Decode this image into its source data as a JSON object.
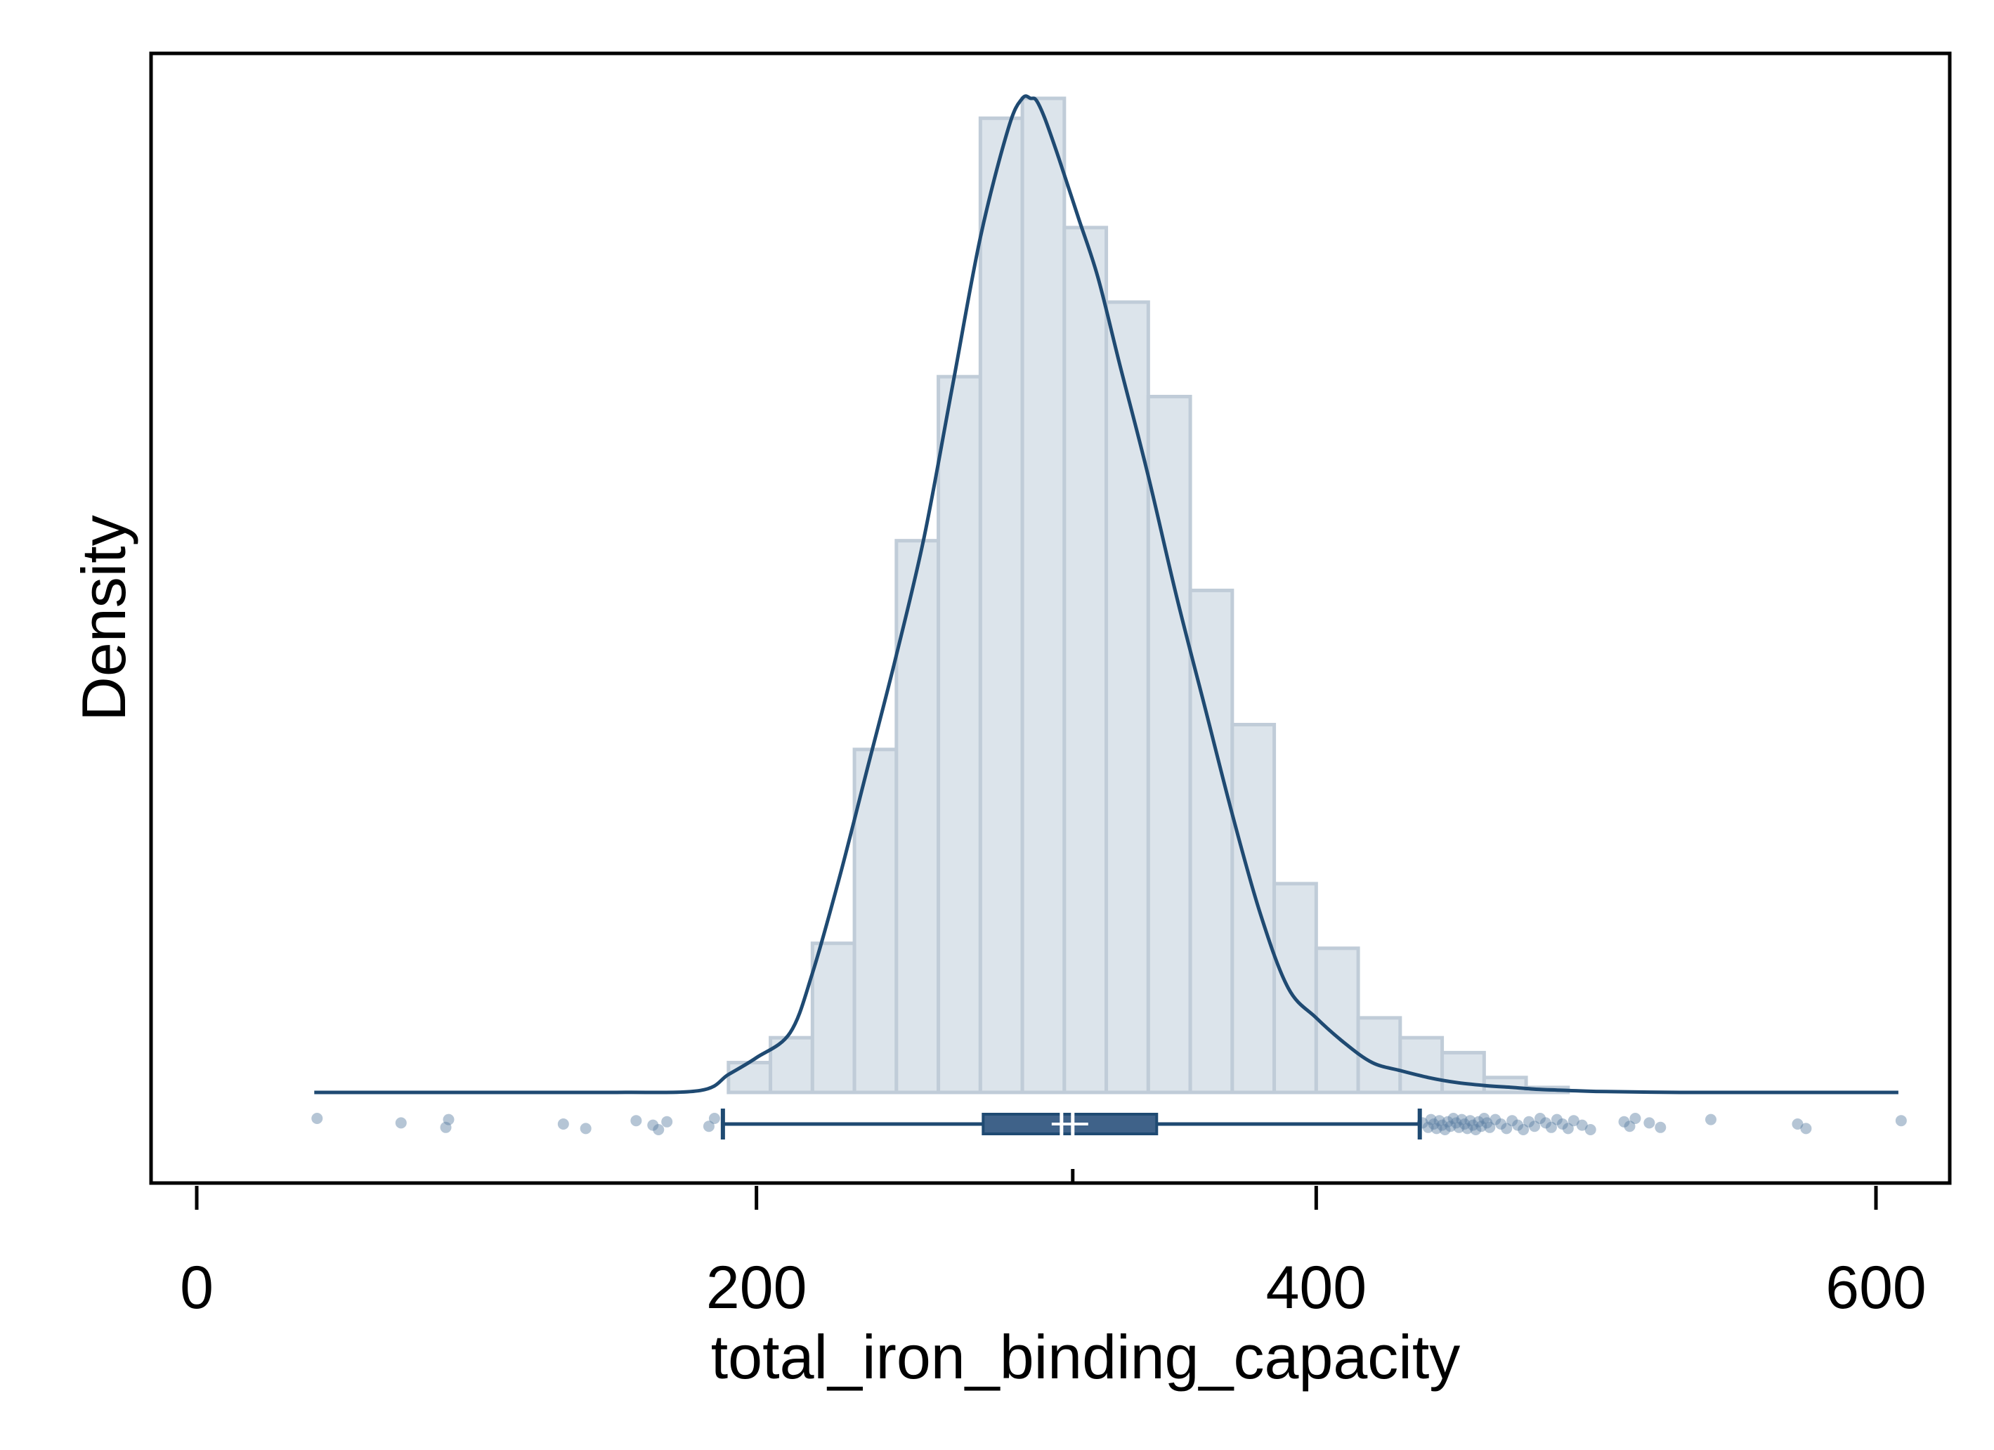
{
  "chart_data": {
    "type": "histogram",
    "xlabel": "total_iron_binding_capacity",
    "ylabel": "Density",
    "xlim": [
      -15,
      625
    ],
    "x_ticks": [
      0,
      200,
      400,
      600
    ],
    "y_ticks_shown": false,
    "grid": false,
    "legend": "none",
    "colors": {
      "bar_fill": "#dce4eb",
      "bar_edge": "#c0ccd8",
      "line": "#1f4a72",
      "box_fill": "#3f6289",
      "points": "#5a7ea1",
      "frame": "#000000"
    },
    "histogram": {
      "bin_edges": [
        190,
        205,
        220,
        235,
        250,
        265,
        280,
        295,
        310,
        325,
        340,
        355,
        370,
        385,
        400,
        415,
        430,
        445,
        460,
        475,
        490
      ],
      "relative_heights": [
        0.03,
        0.055,
        0.15,
        0.345,
        0.555,
        0.72,
        0.98,
        1.0,
        0.87,
        0.795,
        0.7,
        0.505,
        0.37,
        0.21,
        0.145,
        0.075,
        0.055,
        0.04,
        0.015,
        0.005
      ]
    },
    "kde": {
      "x": [
        42,
        100,
        150,
        180,
        190,
        200,
        212,
        220,
        230,
        240,
        250,
        260,
        270,
        280,
        290,
        295,
        298,
        300,
        303,
        308,
        315,
        322,
        330,
        340,
        350,
        360,
        370,
        380,
        390,
        400,
        410,
        420,
        430,
        440,
        450,
        460,
        470,
        480,
        490,
        500,
        530,
        560,
        590,
        608
      ],
      "relative_density": [
        0.0,
        0.0,
        0.0,
        0.002,
        0.018,
        0.035,
        0.06,
        0.12,
        0.22,
        0.33,
        0.44,
        0.56,
        0.71,
        0.86,
        0.97,
        1.0,
        1.0,
        0.998,
        0.98,
        0.94,
        0.88,
        0.82,
        0.73,
        0.62,
        0.5,
        0.39,
        0.28,
        0.18,
        0.105,
        0.075,
        0.05,
        0.03,
        0.022,
        0.015,
        0.01,
        0.007,
        0.005,
        0.003,
        0.002,
        0.001,
        0.0,
        0.0,
        0.0,
        0.0
      ]
    },
    "boxplot": {
      "whisker_low": 188,
      "q1": 281,
      "median": 313,
      "q3": 343,
      "whisker_high": 437,
      "mean": 309
    },
    "outliers": [
      43,
      73,
      89,
      90,
      131,
      139,
      157,
      163,
      165,
      168,
      183,
      185,
      438,
      440,
      441,
      442,
      443,
      444,
      445,
      446,
      447,
      448,
      449,
      450,
      451,
      452,
      453,
      454,
      455,
      456,
      457,
      458,
      459,
      460,
      461,
      462,
      464,
      466,
      468,
      470,
      472,
      474,
      476,
      478,
      480,
      482,
      484,
      486,
      488,
      490,
      492,
      495,
      498,
      510,
      512,
      514,
      519,
      523,
      541,
      572,
      575,
      609
    ]
  }
}
